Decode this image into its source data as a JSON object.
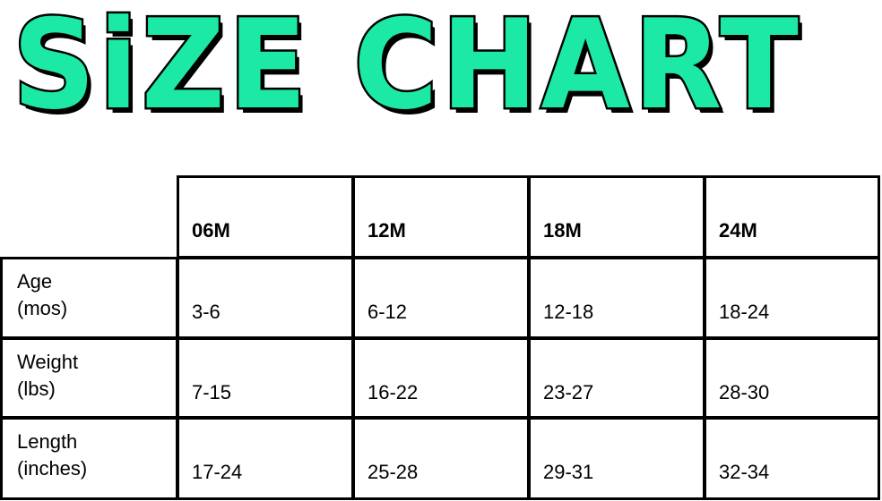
{
  "title": "SiZE CHART",
  "title_color": "#1de9a6",
  "table": {
    "columns": [
      "06M",
      "12M",
      "18M",
      "24M"
    ],
    "rows": [
      {
        "label_line1": "Age",
        "label_line2": "(mos)",
        "values": [
          "3-6",
          "6-12",
          "12-18",
          "18-24"
        ]
      },
      {
        "label_line1": "Weight",
        "label_line2": "(lbs)",
        "values": [
          "7-15",
          "16-22",
          "23-27",
          "28-30"
        ]
      },
      {
        "label_line1": "Length",
        "label_line2": "(inches)",
        "values": [
          "17-24",
          "25-28",
          "29-31",
          "32-34"
        ]
      }
    ]
  }
}
